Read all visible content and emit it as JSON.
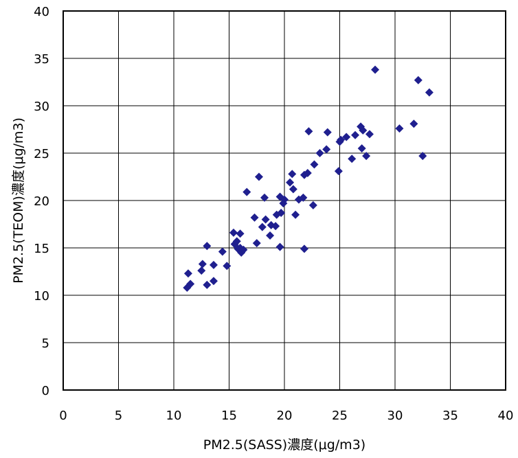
{
  "chart_data": {
    "type": "scatter",
    "xlabel": "PM2.5(SASS)濃度(μg/m3)",
    "ylabel": "PM2.5(TEOM)濃度(μg/m3)",
    "xlim": [
      0,
      40
    ],
    "ylim": [
      0,
      40
    ],
    "xticks": [
      "0",
      "5",
      "10",
      "15",
      "20",
      "25",
      "30",
      "35",
      "40"
    ],
    "yticks": [
      "0",
      "5",
      "10",
      "15",
      "20",
      "25",
      "30",
      "35",
      "40"
    ],
    "grid": true,
    "legend": "none",
    "marker": "diamond",
    "marker_color": "#1f1f8f",
    "series": [
      {
        "points": [
          [
            11.2,
            10.8
          ],
          [
            11.3,
            12.3
          ],
          [
            11.5,
            11.2
          ],
          [
            12.5,
            12.6
          ],
          [
            12.6,
            13.3
          ],
          [
            13.0,
            15.2
          ],
          [
            13.0,
            11.1
          ],
          [
            13.6,
            11.5
          ],
          [
            13.6,
            13.2
          ],
          [
            14.4,
            14.6
          ],
          [
            14.8,
            13.1
          ],
          [
            15.4,
            16.6
          ],
          [
            15.5,
            15.4
          ],
          [
            15.7,
            15.7
          ],
          [
            15.8,
            14.9
          ],
          [
            16.0,
            16.5
          ],
          [
            16.0,
            15.0
          ],
          [
            16.1,
            14.5
          ],
          [
            16.3,
            14.8
          ],
          [
            16.6,
            20.9
          ],
          [
            17.3,
            18.2
          ],
          [
            17.5,
            15.5
          ],
          [
            17.7,
            22.5
          ],
          [
            18.0,
            17.2
          ],
          [
            18.2,
            20.3
          ],
          [
            18.3,
            18.0
          ],
          [
            18.7,
            16.3
          ],
          [
            18.8,
            17.4
          ],
          [
            19.2,
            17.3
          ],
          [
            19.3,
            18.5
          ],
          [
            19.6,
            15.1
          ],
          [
            19.6,
            20.4
          ],
          [
            19.7,
            18.7
          ],
          [
            19.9,
            19.7
          ],
          [
            20.0,
            20.1
          ],
          [
            20.5,
            21.9
          ],
          [
            20.7,
            22.8
          ],
          [
            20.8,
            21.2
          ],
          [
            21.0,
            18.5
          ],
          [
            21.3,
            20.1
          ],
          [
            21.7,
            20.3
          ],
          [
            21.8,
            14.9
          ],
          [
            21.8,
            22.7
          ],
          [
            22.1,
            22.9
          ],
          [
            22.2,
            27.3
          ],
          [
            22.6,
            19.5
          ],
          [
            22.7,
            23.8
          ],
          [
            23.2,
            25.0
          ],
          [
            23.8,
            25.4
          ],
          [
            23.9,
            27.2
          ],
          [
            24.9,
            23.1
          ],
          [
            25.0,
            26.2
          ],
          [
            25.1,
            26.4
          ],
          [
            25.6,
            26.7
          ],
          [
            26.1,
            24.4
          ],
          [
            26.4,
            26.9
          ],
          [
            26.9,
            27.8
          ],
          [
            27.0,
            25.5
          ],
          [
            27.1,
            27.4
          ],
          [
            27.4,
            24.7
          ],
          [
            27.7,
            27.0
          ],
          [
            28.2,
            33.8
          ],
          [
            30.4,
            27.6
          ],
          [
            31.7,
            28.1
          ],
          [
            32.1,
            32.7
          ],
          [
            32.5,
            24.7
          ],
          [
            33.1,
            31.4
          ]
        ]
      }
    ]
  }
}
